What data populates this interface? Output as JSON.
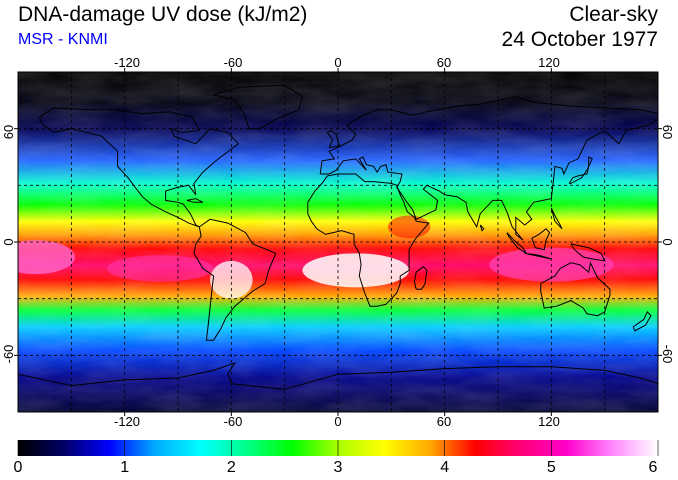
{
  "header": {
    "title": "DNA-damage UV dose (kJ/m2)",
    "subtitle": "MSR - KNMI",
    "condition": "Clear-sky",
    "date": "24 October 1977"
  },
  "colors": {
    "subtitle": "#0000ff",
    "scale": [
      "#000000",
      "#000066",
      "#0000ff",
      "#00aaff",
      "#00ffff",
      "#00ff88",
      "#00ff00",
      "#aaff00",
      "#ffff00",
      "#ffaa00",
      "#ff0000",
      "#ff0077",
      "#ff00cc",
      "#ff88ff",
      "#ffffff"
    ]
  },
  "map": {
    "projection": "equirectangular",
    "lon_range": [
      -180,
      180
    ],
    "lat_range": [
      -90,
      90
    ],
    "lon_ticks": [
      "-120",
      "-60",
      "0",
      "60",
      "120"
    ],
    "lat_ticks_left": [
      "60",
      "0",
      "-60"
    ],
    "lat_ticks_right": [
      "60",
      "0",
      "-60"
    ]
  },
  "colorbar": {
    "min": 0,
    "max": 6,
    "labels": [
      "0",
      "1",
      "2",
      "3",
      "4",
      "5",
      "6"
    ]
  }
}
